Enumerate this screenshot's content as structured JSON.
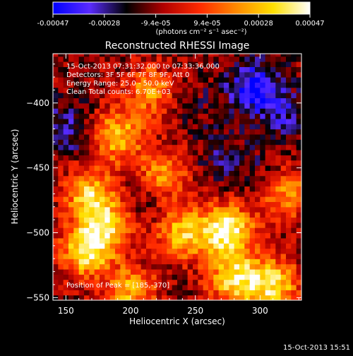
{
  "colorbar": {
    "tick_labels": [
      "-0.00047",
      "-0.00028",
      "-9.4e-05",
      "9.4e-05",
      "0.00028",
      "0.00047"
    ],
    "range": [
      -0.00047,
      0.00047
    ],
    "unit_label": "(photons cm⁻² s⁻¹ asec⁻²)",
    "colors": [
      "#0000ff",
      "#5a2bff",
      "#000000",
      "#b00000",
      "#ff2a00",
      "#ff8a00",
      "#ffe000",
      "#ffffff"
    ]
  },
  "chart_data": {
    "type": "heatmap",
    "title": "Reconstructed RHESSI Image",
    "xlabel": "Heliocentric X (arcsec)",
    "ylabel": "Heliocentric Y (arcsec)",
    "xlim": [
      140,
      332
    ],
    "ylim": [
      -552,
      -362
    ],
    "x_ticks": [
      150,
      200,
      250,
      300
    ],
    "y_ticks": [
      -400,
      -450,
      -500,
      -550
    ],
    "x_tick_labels": [
      "150",
      "200",
      "250",
      "300"
    ],
    "y_tick_labels": [
      "−400",
      "−450",
      "−500",
      "−550"
    ],
    "info_lines": [
      "15-Oct-2013 07:31:32.000 to 07:33:36.000",
      "Detectors: 3F 5F 6F 7F 8F 9F, Att 0",
      "Energy Range: 25.0 - 50.0 keV",
      "Clean     Total counts: 6.70E+03"
    ],
    "peak_label": "Position of Peak = [185,-370]",
    "peak_position": [
      185,
      -370
    ],
    "hotspots": [
      {
        "x": 275,
        "y": -498,
        "value": 0.00045
      },
      {
        "x": 240,
        "y": -500,
        "value": 0.0003
      },
      {
        "x": 180,
        "y": -495,
        "value": 0.00032
      },
      {
        "x": 168,
        "y": -470,
        "value": 0.0003
      },
      {
        "x": 190,
        "y": -425,
        "value": 0.0003
      },
      {
        "x": 225,
        "y": -455,
        "value": 0.00026
      },
      {
        "x": 165,
        "y": -515,
        "value": 0.00034
      },
      {
        "x": 280,
        "y": -535,
        "value": 0.00035
      },
      {
        "x": 310,
        "y": -540,
        "value": 0.00036
      },
      {
        "x": 200,
        "y": -545,
        "value": 0.00026
      },
      {
        "x": 320,
        "y": -470,
        "value": 0.00022
      },
      {
        "x": 215,
        "y": -390,
        "value": 0.0002
      }
    ],
    "coldspots": [
      {
        "x": 295,
        "y": -388,
        "value": -0.00045
      },
      {
        "x": 150,
        "y": -420,
        "value": -0.0003
      },
      {
        "x": 320,
        "y": -410,
        "value": -0.00028
      },
      {
        "x": 270,
        "y": -440,
        "value": -0.00022
      },
      {
        "x": 215,
        "y": -470,
        "value": -0.0002
      },
      {
        "x": 300,
        "y": -455,
        "value": -0.00018
      },
      {
        "x": 250,
        "y": -400,
        "value": -0.00016
      }
    ]
  },
  "footer": {
    "timestamp": "15-Oct-2013 15:51"
  }
}
